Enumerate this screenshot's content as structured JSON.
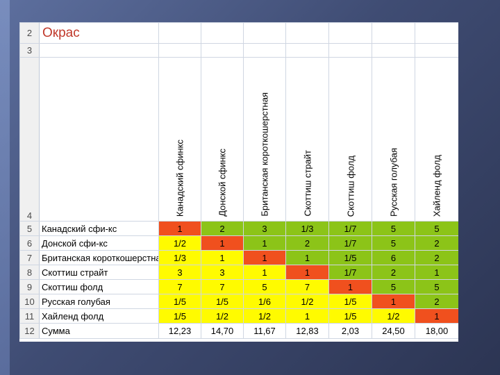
{
  "sheet": {
    "title": "Окрас",
    "row_numbers": [
      "2",
      "3",
      "4",
      "5",
      "6",
      "7",
      "8",
      "9",
      "10",
      "11",
      "12"
    ],
    "columns": [
      "Канадский сфинкс",
      "Донской сфинкс",
      "Британская короткошерстная",
      "Скоттиш страйт",
      "Скоттиш фолд",
      "Русская голубая",
      "Хайленд фолд"
    ],
    "rows": [
      {
        "label": "Канадский сфи-кс",
        "cells": [
          {
            "v": "1",
            "c": "org"
          },
          {
            "v": "2",
            "c": "grn"
          },
          {
            "v": "3",
            "c": "grn"
          },
          {
            "v": "1/3",
            "c": "grn"
          },
          {
            "v": "1/7",
            "c": "grn"
          },
          {
            "v": "5",
            "c": "grn"
          },
          {
            "v": "5",
            "c": "grn"
          }
        ]
      },
      {
        "label": "Донской сфи-кс",
        "cells": [
          {
            "v": "1/2",
            "c": "yel"
          },
          {
            "v": "1",
            "c": "org"
          },
          {
            "v": "1",
            "c": "grn"
          },
          {
            "v": "2",
            "c": "grn"
          },
          {
            "v": "1/7",
            "c": "grn"
          },
          {
            "v": "5",
            "c": "grn"
          },
          {
            "v": "2",
            "c": "grn"
          }
        ]
      },
      {
        "label": "Британская короткошерстная",
        "cells": [
          {
            "v": "1/3",
            "c": "yel"
          },
          {
            "v": "1",
            "c": "yel"
          },
          {
            "v": "1",
            "c": "org"
          },
          {
            "v": "1",
            "c": "grn"
          },
          {
            "v": "1/5",
            "c": "grn"
          },
          {
            "v": "6",
            "c": "grn"
          },
          {
            "v": "2",
            "c": "grn"
          }
        ]
      },
      {
        "label": "Скоттиш страйт",
        "cells": [
          {
            "v": "3",
            "c": "yel"
          },
          {
            "v": "3",
            "c": "yel"
          },
          {
            "v": "1",
            "c": "yel"
          },
          {
            "v": "1",
            "c": "org"
          },
          {
            "v": "1/7",
            "c": "grn"
          },
          {
            "v": "2",
            "c": "grn"
          },
          {
            "v": "1",
            "c": "grn"
          }
        ]
      },
      {
        "label": "Скоттиш фолд",
        "cells": [
          {
            "v": "7",
            "c": "yel"
          },
          {
            "v": "7",
            "c": "yel"
          },
          {
            "v": "5",
            "c": "yel"
          },
          {
            "v": "7",
            "c": "yel"
          },
          {
            "v": "1",
            "c": "org"
          },
          {
            "v": "5",
            "c": "grn"
          },
          {
            "v": "5",
            "c": "grn"
          }
        ]
      },
      {
        "label": "Русская голубая",
        "cells": [
          {
            "v": "1/5",
            "c": "yel"
          },
          {
            "v": "1/5",
            "c": "yel"
          },
          {
            "v": "1/6",
            "c": "yel"
          },
          {
            "v": "1/2",
            "c": "yel"
          },
          {
            "v": "1/5",
            "c": "yel"
          },
          {
            "v": "1",
            "c": "org"
          },
          {
            "v": "2",
            "c": "grn"
          }
        ]
      },
      {
        "label": "Хайленд фолд",
        "cells": [
          {
            "v": "1/5",
            "c": "yel"
          },
          {
            "v": "1/2",
            "c": "yel"
          },
          {
            "v": "1/2",
            "c": "yel"
          },
          {
            "v": "1",
            "c": "yel"
          },
          {
            "v": "1/5",
            "c": "yel"
          },
          {
            "v": "1/2",
            "c": "yel"
          },
          {
            "v": "1",
            "c": "org"
          }
        ]
      }
    ],
    "sum_row": {
      "label": "Сумма",
      "cells": [
        "12,23",
        "14,70",
        "11,67",
        "12,83",
        "2,03",
        "24,50",
        "18,00"
      ]
    },
    "colors": {
      "orange": "#f0501e",
      "yellow": "#fffb00",
      "green": "#8cc418"
    }
  }
}
